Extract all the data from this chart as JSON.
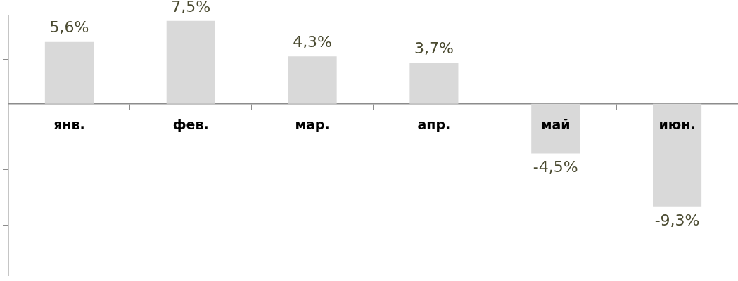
{
  "chart_data": {
    "type": "bar",
    "categories": [
      "янв.",
      "фев.",
      "мар.",
      "апр.",
      "май",
      "июн."
    ],
    "values": [
      5.6,
      7.5,
      4.3,
      3.7,
      -4.5,
      -9.3
    ],
    "value_labels": [
      "5,6%",
      "7,5%",
      "4,3%",
      "3,7%",
      "-4,5%",
      "-9,3%"
    ],
    "color": "#d9d9d9",
    "ylim": [
      -15.6,
      8
    ],
    "yticks": [
      {
        "value": 4,
        "label": null
      },
      {
        "value": -1,
        "label": null
      },
      {
        "value": -6,
        "label": null
      },
      {
        "value": -11,
        "label": null
      }
    ],
    "tick_labels": "x",
    "grid": false,
    "legend": false
  }
}
